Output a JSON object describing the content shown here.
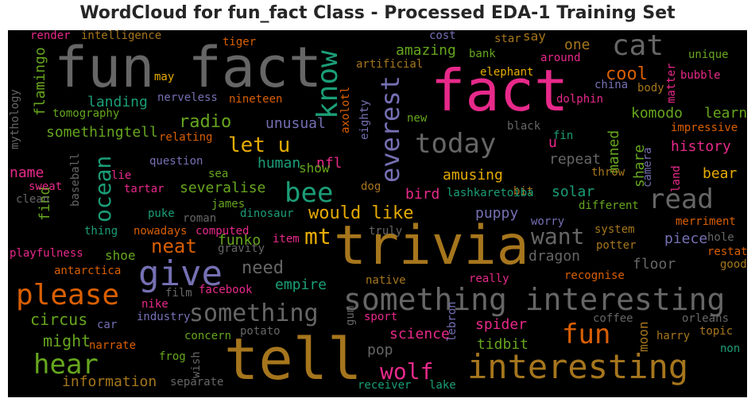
{
  "title": "WordCloud for fun_fact Class - Processed EDA-1 Training Set",
  "words": {
    "fun_fact": "fun fact",
    "fact": "fact",
    "trivia": "trivia",
    "tell": "tell",
    "interesting": "interesting",
    "something_interesting": "something interesting",
    "give": "give",
    "cat": "cat",
    "know": "know",
    "everest": "everest",
    "today": "today",
    "read": "read",
    "please": "please",
    "ocean": "ocean",
    "bee": "bee",
    "hear": "hear",
    "fun": "fun",
    "let_u": "let u",
    "would_like": "would like",
    "want": "want",
    "something": "something",
    "wolf": "wolf",
    "mt": "mt",
    "neat": "neat",
    "radio": "radio",
    "cool": "cool",
    "amazing": "amazing",
    "landing": "landing",
    "history": "history",
    "need": "need",
    "circus": "circus",
    "might": "might",
    "spider": "spider",
    "science": "science",
    "tidbit": "tidbit",
    "information": "information",
    "dragon": "dragon",
    "floor": "floor",
    "piece": "piece",
    "puppy": "puppy",
    "bird": "bird",
    "amusing": "amusing",
    "severalise": "severalise",
    "human": "human",
    "unusual": "unusual",
    "komodo": "komodo",
    "learn": "learn",
    "share": "share",
    "maned": "maned",
    "bear": "bear",
    "solar": "solar",
    "empire": "empire",
    "funko": "funko",
    "shoe": "shoe",
    "moon": "moon",
    "somethingtell": "somethingtell",
    "flamingo": "flamingo",
    "name": "name",
    "find": "find",
    "pop": "pop",
    "say": "say",
    "one": "one",
    "star": "star",
    "cost": "cost",
    "bank": "bank",
    "around": "around",
    "unique": "unique",
    "bubble": "bubble",
    "body": "body",
    "matter": "matter",
    "dolphin": "dolphin",
    "china": "china",
    "elephant": "elephant",
    "artificial": "artificial",
    "intelligence": "intelligence",
    "render": "render",
    "tiger": "tiger",
    "may": "may",
    "nerveless": "nerveless",
    "nineteen": "nineteen",
    "tomography": "tomography",
    "axolotl": "axolotl",
    "eighty": "eighty",
    "new": "new",
    "black": "black",
    "u": "u",
    "fin": "fin",
    "repeat": "repeat",
    "impressive": "impressive",
    "camera": "camera",
    "land": "land",
    "throw": "throw",
    "bit": "bit",
    "relating": "relating",
    "question": "question",
    "nfl": "nfl",
    "show": "show",
    "sea": "sea",
    "lie": "lie",
    "tartar": "tartar",
    "sweat": "sweat",
    "baseball": "baseball",
    "clean": "clean",
    "mythology": "mythology",
    "dog": "dog",
    "lashkaretoiba": "lashkaretoiba",
    "different": "different",
    "merriment": "merriment",
    "worry": "worry",
    "system": "system",
    "hole": "hole",
    "restate": "restate",
    "good": "good",
    "potter": "potter",
    "recognise": "recognise",
    "really": "really",
    "native": "native",
    "truly": "truly",
    "item": "item",
    "dinosaur": "dinosaur",
    "james": "james",
    "roman": "roman",
    "puke": "puke",
    "thing": "thing",
    "nowadays": "nowadays",
    "computed": "computed",
    "gravity": "gravity",
    "playfulness": "playfulness",
    "antarctica": "antarctica",
    "facebook": "facebook",
    "film": "film",
    "nike": "nike",
    "industry": "industry",
    "car": "car",
    "sport": "sport",
    "gum": "gum",
    "lebron": "lebron",
    "coffee": "coffee",
    "orleans": "orleans",
    "topic": "topic",
    "harry": "harry",
    "non": "non",
    "potato": "potato",
    "concern": "concern",
    "narrate": "narrate",
    "frog": "frog",
    "wish": "wish",
    "separate": "separate",
    "receiver": "receiver",
    "lake": "lake"
  },
  "colors": {
    "gray": "#666666",
    "pink": "#e7298a",
    "gold": "#a6761d",
    "orange": "#d95f02",
    "green": "#1b9e77",
    "lime": "#66a61e",
    "purple": "#7570b3",
    "yellow": "#e6ab02"
  }
}
